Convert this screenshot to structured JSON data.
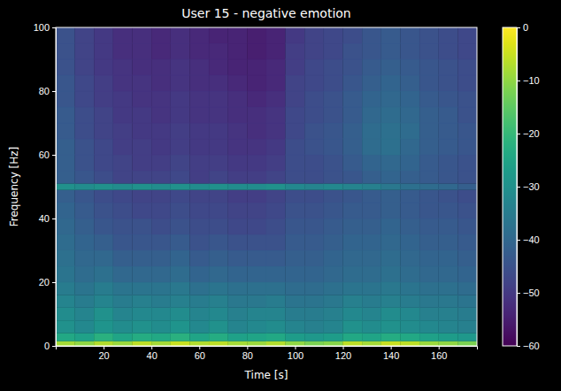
{
  "chart_data": {
    "type": "heatmap",
    "title": "User 15 - negative emotion",
    "x_label": "Time [s]",
    "y_label": "Frequency [Hz]",
    "xlim": [
      0,
      176
    ],
    "ylim": [
      0,
      100
    ],
    "xticks": [
      20,
      40,
      60,
      80,
      100,
      120,
      140,
      160
    ],
    "yticks": [
      0,
      20,
      40,
      60,
      80,
      100
    ],
    "x_edges": [
      0,
      8,
      16,
      24,
      32,
      40,
      48,
      56,
      64,
      72,
      80,
      88,
      96,
      104,
      112,
      120,
      128,
      136,
      144,
      152,
      160,
      168,
      176
    ],
    "y_edges": [
      0,
      1.5,
      4,
      8,
      12,
      16,
      20,
      25,
      30,
      35,
      40,
      45,
      49,
      51,
      55,
      60,
      65,
      70,
      75,
      80,
      85,
      90,
      95,
      100
    ],
    "cells": [
      [
        -8,
        -10,
        -7,
        -9,
        -6,
        -8,
        -5,
        -7,
        -6,
        -8,
        -9,
        -7,
        -10,
        -12,
        -11,
        -6,
        -8,
        -5,
        -6,
        -9,
        -10,
        -12
      ],
      [
        -24,
        -26,
        -22,
        -25,
        -23,
        -24,
        -22,
        -25,
        -23,
        -26,
        -25,
        -24,
        -27,
        -28,
        -27,
        -24,
        -25,
        -23,
        -24,
        -26,
        -27,
        -28
      ],
      [
        -30,
        -32,
        -29,
        -31,
        -30,
        -31,
        -29,
        -32,
        -30,
        -33,
        -32,
        -31,
        -33,
        -34,
        -33,
        -30,
        -31,
        -30,
        -31,
        -32,
        -33,
        -34
      ],
      [
        -31,
        -33,
        -30,
        -33,
        -32,
        -32,
        -31,
        -33,
        -32,
        -34,
        -33,
        -33,
        -35,
        -35,
        -34,
        -32,
        -33,
        -31,
        -32,
        -34,
        -34,
        -35
      ],
      [
        -33,
        -35,
        -33,
        -35,
        -34,
        -35,
        -34,
        -35,
        -34,
        -36,
        -36,
        -35,
        -37,
        -37,
        -36,
        -34,
        -35,
        -34,
        -35,
        -36,
        -36,
        -37
      ],
      [
        -35,
        -37,
        -35,
        -37,
        -37,
        -37,
        -36,
        -38,
        -37,
        -38,
        -38,
        -38,
        -39,
        -39,
        -38,
        -37,
        -37,
        -36,
        -37,
        -38,
        -38,
        -39
      ],
      [
        -37,
        -39,
        -38,
        -40,
        -40,
        -40,
        -39,
        -41,
        -40,
        -41,
        -41,
        -41,
        -41,
        -41,
        -40,
        -39,
        -39,
        -38,
        -39,
        -40,
        -40,
        -41
      ],
      [
        -38,
        -40,
        -40,
        -42,
        -42,
        -42,
        -41,
        -43,
        -42,
        -43,
        -43,
        -43,
        -42,
        -42,
        -41,
        -40,
        -40,
        -39,
        -40,
        -41,
        -41,
        -42
      ],
      [
        -39,
        -41,
        -42,
        -44,
        -44,
        -44,
        -43,
        -45,
        -44,
        -45,
        -45,
        -45,
        -43,
        -43,
        -42,
        -41,
        -41,
        -40,
        -41,
        -42,
        -42,
        -43
      ],
      [
        -40,
        -42,
        -44,
        -45,
        -45,
        -46,
        -45,
        -46,
        -46,
        -47,
        -47,
        -46,
        -44,
        -44,
        -43,
        -42,
        -42,
        -41,
        -42,
        -43,
        -43,
        -44
      ],
      [
        -41,
        -43,
        -45,
        -46,
        -47,
        -47,
        -46,
        -47,
        -47,
        -48,
        -48,
        -47,
        -45,
        -45,
        -44,
        -43,
        -43,
        -42,
        -43,
        -44,
        -44,
        -45
      ],
      [
        -42,
        -44,
        -46,
        -47,
        -48,
        -48,
        -47,
        -48,
        -48,
        -49,
        -49,
        -48,
        -46,
        -46,
        -45,
        -44,
        -43,
        -42,
        -43,
        -44,
        -45,
        -46
      ],
      [
        -30,
        -31,
        -30,
        -31,
        -30,
        -31,
        -30,
        -31,
        -30,
        -31,
        -31,
        -30,
        -32,
        -33,
        -32,
        -33,
        -34,
        -36,
        -38,
        -39,
        -40,
        -42
      ],
      [
        -42,
        -44,
        -46,
        -48,
        -48,
        -48,
        -47,
        -49,
        -48,
        -49,
        -49,
        -48,
        -46,
        -46,
        -45,
        -44,
        -42,
        -41,
        -42,
        -43,
        -44,
        -45
      ],
      [
        -42,
        -45,
        -47,
        -48,
        -49,
        -49,
        -48,
        -49,
        -49,
        -50,
        -50,
        -49,
        -46,
        -46,
        -45,
        -43,
        -41,
        -40,
        -41,
        -43,
        -44,
        -45
      ],
      [
        -42,
        -45,
        -47,
        -49,
        -49,
        -50,
        -49,
        -50,
        -50,
        -51,
        -51,
        -50,
        -46,
        -45,
        -44,
        -42,
        -39,
        -38,
        -40,
        -42,
        -43,
        -44
      ],
      [
        -43,
        -46,
        -48,
        -49,
        -50,
        -50,
        -49,
        -50,
        -50,
        -51,
        -52,
        -51,
        -47,
        -45,
        -44,
        -42,
        -39,
        -38,
        -39,
        -42,
        -43,
        -44
      ],
      [
        -43,
        -46,
        -48,
        -50,
        -50,
        -51,
        -50,
        -51,
        -51,
        -52,
        -52,
        -51,
        -47,
        -46,
        -45,
        -43,
        -40,
        -39,
        -40,
        -42,
        -43,
        -45
      ],
      [
        -44,
        -47,
        -49,
        -50,
        -51,
        -51,
        -50,
        -51,
        -51,
        -52,
        -53,
        -52,
        -48,
        -46,
        -45,
        -43,
        -41,
        -40,
        -41,
        -43,
        -44,
        -45
      ],
      [
        -44,
        -47,
        -49,
        -51,
        -51,
        -52,
        -51,
        -52,
        -52,
        -53,
        -54,
        -53,
        -48,
        -47,
        -46,
        -44,
        -42,
        -41,
        -42,
        -44,
        -45,
        -46
      ],
      [
        -45,
        -48,
        -50,
        -51,
        -52,
        -52,
        -51,
        -52,
        -53,
        -54,
        -54,
        -53,
        -49,
        -47,
        -46,
        -45,
        -43,
        -42,
        -43,
        -44,
        -45,
        -46
      ],
      [
        -45,
        -48,
        -50,
        -52,
        -52,
        -53,
        -52,
        -53,
        -53,
        -54,
        -55,
        -54,
        -49,
        -48,
        -47,
        -45,
        -44,
        -43,
        -44,
        -45,
        -46,
        -47
      ],
      [
        -45,
        -48,
        -50,
        -52,
        -52,
        -53,
        -52,
        -53,
        -54,
        -54,
        -55,
        -54,
        -50,
        -48,
        -47,
        -46,
        -44,
        -43,
        -44,
        -45,
        -46,
        -47
      ]
    ],
    "colorbar": {
      "range": [
        -60,
        0
      ],
      "ticks": [
        0,
        {
          "value": -10,
          "label": "−10"
        },
        {
          "value": -20,
          "label": "−20"
        },
        {
          "value": -30,
          "label": "−30"
        },
        {
          "value": -40,
          "label": "−40"
        },
        {
          "value": -50,
          "label": "−50"
        },
        {
          "value": -60,
          "label": "−60"
        }
      ]
    }
  }
}
